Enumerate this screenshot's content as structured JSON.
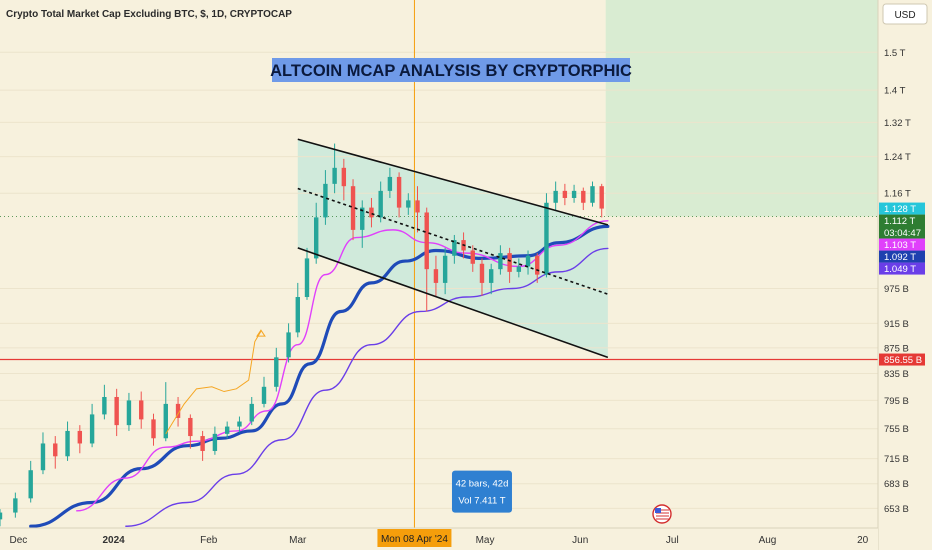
{
  "header": {
    "symbol_title": "Crypto Total Market Cap Excluding BTC, $, 1D, CRYPTOCAP",
    "currency": "USD"
  },
  "banner": {
    "text": "ALTCOIN MCAP ANALYSIS BY CRYPTORPHIC"
  },
  "colors": {
    "background": "#f7f1dd",
    "up": "#26a69a",
    "down": "#ef5350",
    "channel_fill": "#c9e9da",
    "projection_fill": "#d9ecd2",
    "ma_thick": "#1f4bb8",
    "ma_magenta": "#e040fb",
    "ma_purple": "#6a3ee8",
    "support": "#e53935",
    "crosshair": "#f59e0b",
    "banner": "#6f9ae8"
  },
  "chart_data": {
    "type": "candlestick",
    "x_axis": {
      "range": [
        "2023-11-25",
        "2024-09-06"
      ],
      "tick_labels": [
        {
          "date": "2023-12-01",
          "label": "Dec"
        },
        {
          "date": "2024-01-01",
          "label": "2024"
        },
        {
          "date": "2024-02-01",
          "label": "Feb"
        },
        {
          "date": "2024-03-01",
          "label": "Mar"
        },
        {
          "date": "2024-05-01",
          "label": "May"
        },
        {
          "date": "2024-06-01",
          "label": "Jun"
        },
        {
          "date": "2024-07-01",
          "label": "Jul"
        },
        {
          "date": "2024-08-01",
          "label": "Aug"
        },
        {
          "date": "2024-09-01",
          "label": "20"
        }
      ]
    },
    "y_axis": {
      "scale": "log",
      "range": [
        630,
        1650
      ],
      "tick_labels": [
        {
          "value": 653,
          "label": "653 B"
        },
        {
          "value": 683,
          "label": "683 B"
        },
        {
          "value": 715,
          "label": "715 B"
        },
        {
          "value": 755,
          "label": "755 B"
        },
        {
          "value": 795,
          "label": "795 B"
        },
        {
          "value": 835,
          "label": "835 B"
        },
        {
          "value": 875,
          "label": "875 B"
        },
        {
          "value": 915,
          "label": "915 B"
        },
        {
          "value": 975,
          "label": "975 B"
        },
        {
          "value": 1160,
          "label": "1.16 T"
        },
        {
          "value": 1240,
          "label": "1.24 T"
        },
        {
          "value": 1320,
          "label": "1.32 T"
        },
        {
          "value": 1400,
          "label": "1.4 T"
        },
        {
          "value": 1500,
          "label": "1.5 T"
        }
      ]
    },
    "price_badges": [
      {
        "value": 1128,
        "label": "1.128 T",
        "color": "#26c6da"
      },
      {
        "value": 1112,
        "label": "1.112 T",
        "sublabel": "03:04:47",
        "color": "#2e7d32"
      },
      {
        "value": 1103,
        "label": "1.103 T",
        "color": "#e040fb"
      },
      {
        "value": 1092,
        "label": "1.092 T",
        "color": "#1e40af"
      },
      {
        "value": 1049,
        "label": "1.049 T",
        "color": "#6a3ee8"
      },
      {
        "value": 856.55,
        "label": "856.55 B",
        "color": "#e53935"
      }
    ],
    "candles": [
      {
        "d": "2023-11-25",
        "o": 640,
        "c": 648,
        "h": 652,
        "l": 632
      },
      {
        "d": "2023-11-30",
        "o": 648,
        "c": 665,
        "h": 672,
        "l": 642
      },
      {
        "d": "2023-12-05",
        "o": 665,
        "c": 700,
        "h": 712,
        "l": 660
      },
      {
        "d": "2023-12-09",
        "o": 700,
        "c": 735,
        "h": 750,
        "l": 695
      },
      {
        "d": "2023-12-13",
        "o": 735,
        "c": 718,
        "h": 745,
        "l": 702
      },
      {
        "d": "2023-12-17",
        "o": 718,
        "c": 752,
        "h": 765,
        "l": 712
      },
      {
        "d": "2023-12-21",
        "o": 752,
        "c": 735,
        "h": 760,
        "l": 722
      },
      {
        "d": "2023-12-25",
        "o": 735,
        "c": 775,
        "h": 790,
        "l": 730
      },
      {
        "d": "2023-12-29",
        "o": 775,
        "c": 800,
        "h": 818,
        "l": 768
      },
      {
        "d": "2024-01-02",
        "o": 800,
        "c": 760,
        "h": 812,
        "l": 745
      },
      {
        "d": "2024-01-06",
        "o": 760,
        "c": 795,
        "h": 806,
        "l": 752
      },
      {
        "d": "2024-01-10",
        "o": 795,
        "c": 768,
        "h": 808,
        "l": 755
      },
      {
        "d": "2024-01-14",
        "o": 768,
        "c": 742,
        "h": 776,
        "l": 732
      },
      {
        "d": "2024-01-18",
        "o": 742,
        "c": 790,
        "h": 822,
        "l": 738
      },
      {
        "d": "2024-01-22",
        "o": 790,
        "c": 770,
        "h": 800,
        "l": 758
      },
      {
        "d": "2024-01-26",
        "o": 770,
        "c": 745,
        "h": 775,
        "l": 728
      },
      {
        "d": "2024-01-30",
        "o": 745,
        "c": 725,
        "h": 752,
        "l": 712
      },
      {
        "d": "2024-02-03",
        "o": 725,
        "c": 748,
        "h": 758,
        "l": 720
      },
      {
        "d": "2024-02-07",
        "o": 748,
        "c": 758,
        "h": 765,
        "l": 742
      },
      {
        "d": "2024-02-11",
        "o": 758,
        "c": 765,
        "h": 772,
        "l": 750
      },
      {
        "d": "2024-02-15",
        "o": 765,
        "c": 790,
        "h": 800,
        "l": 760
      },
      {
        "d": "2024-02-19",
        "o": 790,
        "c": 815,
        "h": 830,
        "l": 785
      },
      {
        "d": "2024-02-23",
        "o": 815,
        "c": 860,
        "h": 875,
        "l": 808
      },
      {
        "d": "2024-02-27",
        "o": 860,
        "c": 900,
        "h": 915,
        "l": 852
      },
      {
        "d": "2024-03-01",
        "o": 900,
        "c": 960,
        "h": 985,
        "l": 892
      },
      {
        "d": "2024-03-04",
        "o": 960,
        "c": 1030,
        "h": 1050,
        "l": 955
      },
      {
        "d": "2024-03-07",
        "o": 1030,
        "c": 1110,
        "h": 1140,
        "l": 1020
      },
      {
        "d": "2024-03-10",
        "o": 1110,
        "c": 1180,
        "h": 1210,
        "l": 1095
      },
      {
        "d": "2024-03-13",
        "o": 1180,
        "c": 1215,
        "h": 1270,
        "l": 1160
      },
      {
        "d": "2024-03-16",
        "o": 1215,
        "c": 1175,
        "h": 1235,
        "l": 1145
      },
      {
        "d": "2024-03-19",
        "o": 1175,
        "c": 1085,
        "h": 1190,
        "l": 1065
      },
      {
        "d": "2024-03-22",
        "o": 1085,
        "c": 1130,
        "h": 1145,
        "l": 1050
      },
      {
        "d": "2024-03-25",
        "o": 1130,
        "c": 1110,
        "h": 1150,
        "l": 1090
      },
      {
        "d": "2024-03-28",
        "o": 1110,
        "c": 1165,
        "h": 1185,
        "l": 1100
      },
      {
        "d": "2024-03-31",
        "o": 1165,
        "c": 1195,
        "h": 1215,
        "l": 1150
      },
      {
        "d": "2024-04-03",
        "o": 1195,
        "c": 1130,
        "h": 1205,
        "l": 1110
      },
      {
        "d": "2024-04-06",
        "o": 1130,
        "c": 1145,
        "h": 1160,
        "l": 1115
      },
      {
        "d": "2024-04-09",
        "o": 1145,
        "c": 1120,
        "h": 1175,
        "l": 1080
      },
      {
        "d": "2024-04-12",
        "o": 1120,
        "c": 1010,
        "h": 1130,
        "l": 935
      },
      {
        "d": "2024-04-15",
        "o": 1010,
        "c": 985,
        "h": 1035,
        "l": 960
      },
      {
        "d": "2024-04-18",
        "o": 985,
        "c": 1035,
        "h": 1050,
        "l": 965
      },
      {
        "d": "2024-04-21",
        "o": 1035,
        "c": 1065,
        "h": 1075,
        "l": 1020
      },
      {
        "d": "2024-04-24",
        "o": 1065,
        "c": 1045,
        "h": 1080,
        "l": 1030
      },
      {
        "d": "2024-04-27",
        "o": 1045,
        "c": 1020,
        "h": 1055,
        "l": 1005
      },
      {
        "d": "2024-04-30",
        "o": 1020,
        "c": 985,
        "h": 1030,
        "l": 962
      },
      {
        "d": "2024-05-03",
        "o": 985,
        "c": 1010,
        "h": 1020,
        "l": 965
      },
      {
        "d": "2024-05-06",
        "o": 1010,
        "c": 1040,
        "h": 1055,
        "l": 1000
      },
      {
        "d": "2024-05-09",
        "o": 1040,
        "c": 1005,
        "h": 1050,
        "l": 985
      },
      {
        "d": "2024-05-12",
        "o": 1005,
        "c": 1015,
        "h": 1030,
        "l": 995
      },
      {
        "d": "2024-05-15",
        "o": 1015,
        "c": 1035,
        "h": 1045,
        "l": 1000
      },
      {
        "d": "2024-05-18",
        "o": 1035,
        "c": 1000,
        "h": 1040,
        "l": 985
      },
      {
        "d": "2024-05-21",
        "o": 1000,
        "c": 1140,
        "h": 1160,
        "l": 995
      },
      {
        "d": "2024-05-24",
        "o": 1140,
        "c": 1165,
        "h": 1185,
        "l": 1125
      },
      {
        "d": "2024-05-27",
        "o": 1165,
        "c": 1150,
        "h": 1180,
        "l": 1135
      },
      {
        "d": "2024-05-30",
        "o": 1150,
        "c": 1165,
        "h": 1178,
        "l": 1140
      },
      {
        "d": "2024-06-02",
        "o": 1165,
        "c": 1140,
        "h": 1172,
        "l": 1125
      },
      {
        "d": "2024-06-05",
        "o": 1140,
        "c": 1175,
        "h": 1185,
        "l": 1132
      },
      {
        "d": "2024-06-08",
        "o": 1175,
        "c": 1128,
        "h": 1180,
        "l": 1110
      }
    ],
    "moving_averages": [
      {
        "color_key": "ma_thick",
        "width": 3.2,
        "points": [
          [
            "2023-12-05",
            632
          ],
          [
            "2023-12-25",
            660
          ],
          [
            "2024-01-10",
            702
          ],
          [
            "2024-01-25",
            732
          ],
          [
            "2024-02-05",
            742
          ],
          [
            "2024-02-15",
            752
          ],
          [
            "2024-02-25",
            790
          ],
          [
            "2024-03-05",
            850
          ],
          [
            "2024-03-15",
            935
          ],
          [
            "2024-03-25",
            985
          ],
          [
            "2024-04-05",
            1025
          ],
          [
            "2024-04-15",
            1045
          ],
          [
            "2024-04-30",
            1030
          ],
          [
            "2024-05-15",
            1035
          ],
          [
            "2024-05-25",
            1060
          ],
          [
            "2024-06-10",
            1092
          ]
        ]
      },
      {
        "color_key": "ma_magenta",
        "width": 1.4,
        "points": [
          [
            "2023-12-20",
            650
          ],
          [
            "2024-01-05",
            690
          ],
          [
            "2024-01-18",
            730
          ],
          [
            "2024-01-28",
            738
          ],
          [
            "2024-02-10",
            752
          ],
          [
            "2024-02-20",
            780
          ],
          [
            "2024-03-01",
            880
          ],
          [
            "2024-03-10",
            1000
          ],
          [
            "2024-03-20",
            1070
          ],
          [
            "2024-04-01",
            1085
          ],
          [
            "2024-04-12",
            1060
          ],
          [
            "2024-04-25",
            1040
          ],
          [
            "2024-05-12",
            1015
          ],
          [
            "2024-05-25",
            1055
          ],
          [
            "2024-06-10",
            1103
          ]
        ]
      },
      {
        "color_key": "ma_purple",
        "width": 1.4,
        "points": [
          [
            "2024-01-05",
            632
          ],
          [
            "2024-01-25",
            660
          ],
          [
            "2024-02-10",
            695
          ],
          [
            "2024-02-25",
            740
          ],
          [
            "2024-03-10",
            810
          ],
          [
            "2024-03-25",
            880
          ],
          [
            "2024-04-10",
            935
          ],
          [
            "2024-04-25",
            960
          ],
          [
            "2024-05-10",
            975
          ],
          [
            "2024-05-25",
            1005
          ],
          [
            "2024-06-10",
            1049
          ]
        ]
      }
    ],
    "channel": {
      "upper": [
        [
          "2024-03-01",
          1280
        ],
        [
          "2024-06-10",
          1095
        ]
      ],
      "middle": [
        [
          "2024-03-01",
          1170
        ],
        [
          "2024-06-10",
          965
        ]
      ],
      "lower": [
        [
          "2024-03-01",
          1050
        ],
        [
          "2024-06-10",
          860
        ]
      ]
    },
    "support_level": 856.55,
    "crosshair_date": "2024-04-08",
    "crosshair_label": "Mon 08 Apr '24",
    "measure_box": {
      "line1": "42 bars, 42d",
      "line2": "Vol 7.411 T",
      "date": "2024-04-30",
      "value": 672
    },
    "arrow_path": [
      [
        "2024-01-18",
        748
      ],
      [
        "2024-01-24",
        790
      ],
      [
        "2024-01-28",
        812
      ],
      [
        "2024-02-02",
        815
      ],
      [
        "2024-02-06",
        808
      ],
      [
        "2024-02-10",
        812
      ],
      [
        "2024-02-14",
        825
      ],
      [
        "2024-02-16",
        885
      ],
      [
        "2024-02-18",
        902
      ]
    ]
  }
}
